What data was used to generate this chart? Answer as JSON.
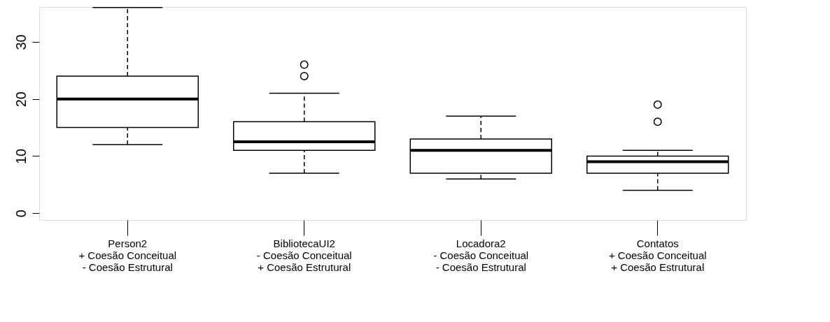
{
  "chart_data": {
    "type": "box",
    "categories": [
      "Person2\n+  Coesão Conceitual\n-  Coesão Estrutural",
      "BibliotecaUI2\n-  Coesão Conceitual\n+ Coesão Estrutural",
      "Locadora2\n- Coesão Conceitual\n- Coesão Estrutural",
      "Contatos\n+ Coesão Conceitual\n+ Coesão Estrutural"
    ],
    "boxes": [
      {
        "low": 12,
        "q1": 15,
        "median": 20,
        "q3": 24,
        "high": 36
      },
      {
        "low": 7,
        "q1": 11,
        "median": 12.5,
        "q3": 16,
        "high": 21,
        "outliers": [
          24,
          26
        ]
      },
      {
        "low": 6,
        "q1": 7,
        "median": 11,
        "q3": 13,
        "high": 17
      },
      {
        "low": 4,
        "q1": 7,
        "median": 9,
        "q3": 10,
        "high": 11,
        "outliers": [
          16,
          19
        ]
      }
    ],
    "ylim": [
      -1.2,
      36.1
    ],
    "yticks": [
      0,
      10,
      20,
      30
    ],
    "grid": false
  }
}
